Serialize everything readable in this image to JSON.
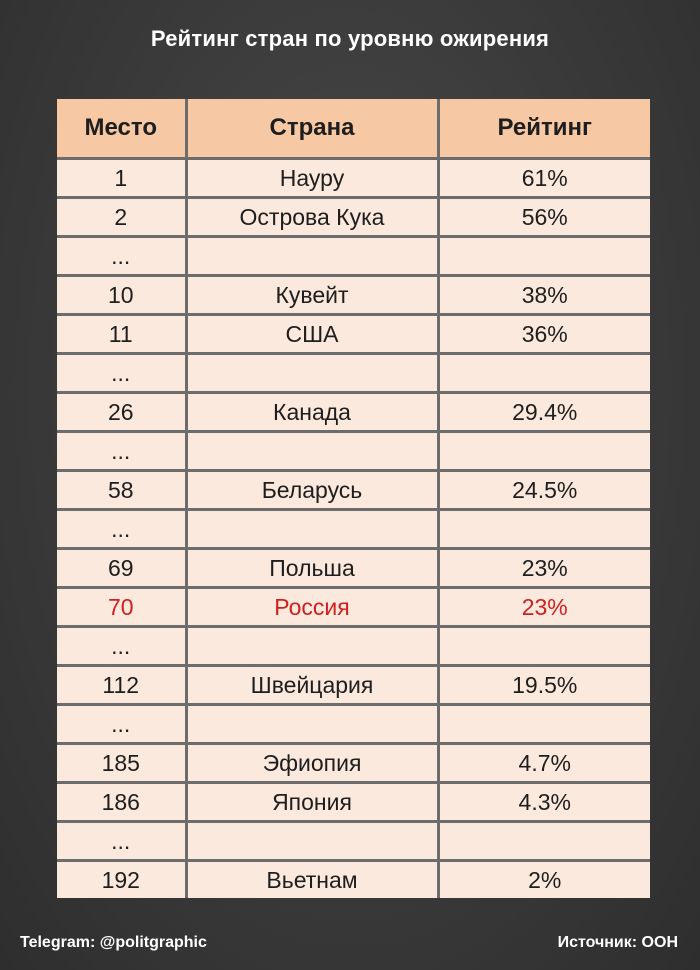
{
  "title": "Рейтинг стран по уровню ожирения",
  "footer": {
    "left": "Telegram: @politgraphic",
    "right": "Источник: ООН"
  },
  "chart_data": {
    "type": "table",
    "title": "Рейтинг стран по уровню ожирения",
    "columns": [
      "Место",
      "Страна",
      "Рейтинг"
    ],
    "rows": [
      {
        "place": "1",
        "country": "Науру",
        "rating": "61%",
        "highlight": false
      },
      {
        "place": "2",
        "country": "Острова Кука",
        "rating": "56%",
        "highlight": false
      },
      {
        "place": "...",
        "country": "",
        "rating": "",
        "highlight": false
      },
      {
        "place": "10",
        "country": "Кувейт",
        "rating": "38%",
        "highlight": false
      },
      {
        "place": "11",
        "country": "США",
        "rating": "36%",
        "highlight": false
      },
      {
        "place": "...",
        "country": "",
        "rating": "",
        "highlight": false
      },
      {
        "place": "26",
        "country": "Канада",
        "rating": "29.4%",
        "highlight": false
      },
      {
        "place": "...",
        "country": "",
        "rating": "",
        "highlight": false
      },
      {
        "place": "58",
        "country": "Беларусь",
        "rating": "24.5%",
        "highlight": false
      },
      {
        "place": "...",
        "country": "",
        "rating": "",
        "highlight": false
      },
      {
        "place": "69",
        "country": "Польша",
        "rating": "23%",
        "highlight": false
      },
      {
        "place": "70",
        "country": "Россия",
        "rating": "23%",
        "highlight": true
      },
      {
        "place": "...",
        "country": "",
        "rating": "",
        "highlight": false
      },
      {
        "place": "112",
        "country": "Швейцария",
        "rating": "19.5%",
        "highlight": false
      },
      {
        "place": "...",
        "country": "",
        "rating": "",
        "highlight": false
      },
      {
        "place": "185",
        "country": "Эфиопия",
        "rating": "4.7%",
        "highlight": false
      },
      {
        "place": "186",
        "country": "Япония",
        "rating": "4.3%",
        "highlight": false
      },
      {
        "place": "...",
        "country": "",
        "rating": "",
        "highlight": false
      },
      {
        "place": "192",
        "country": "Вьетнам",
        "rating": "2%",
        "highlight": false
      }
    ],
    "highlight_color": "#d01f1f",
    "header_color": "#f6c8a3",
    "row_color": "#fbe9dd"
  }
}
